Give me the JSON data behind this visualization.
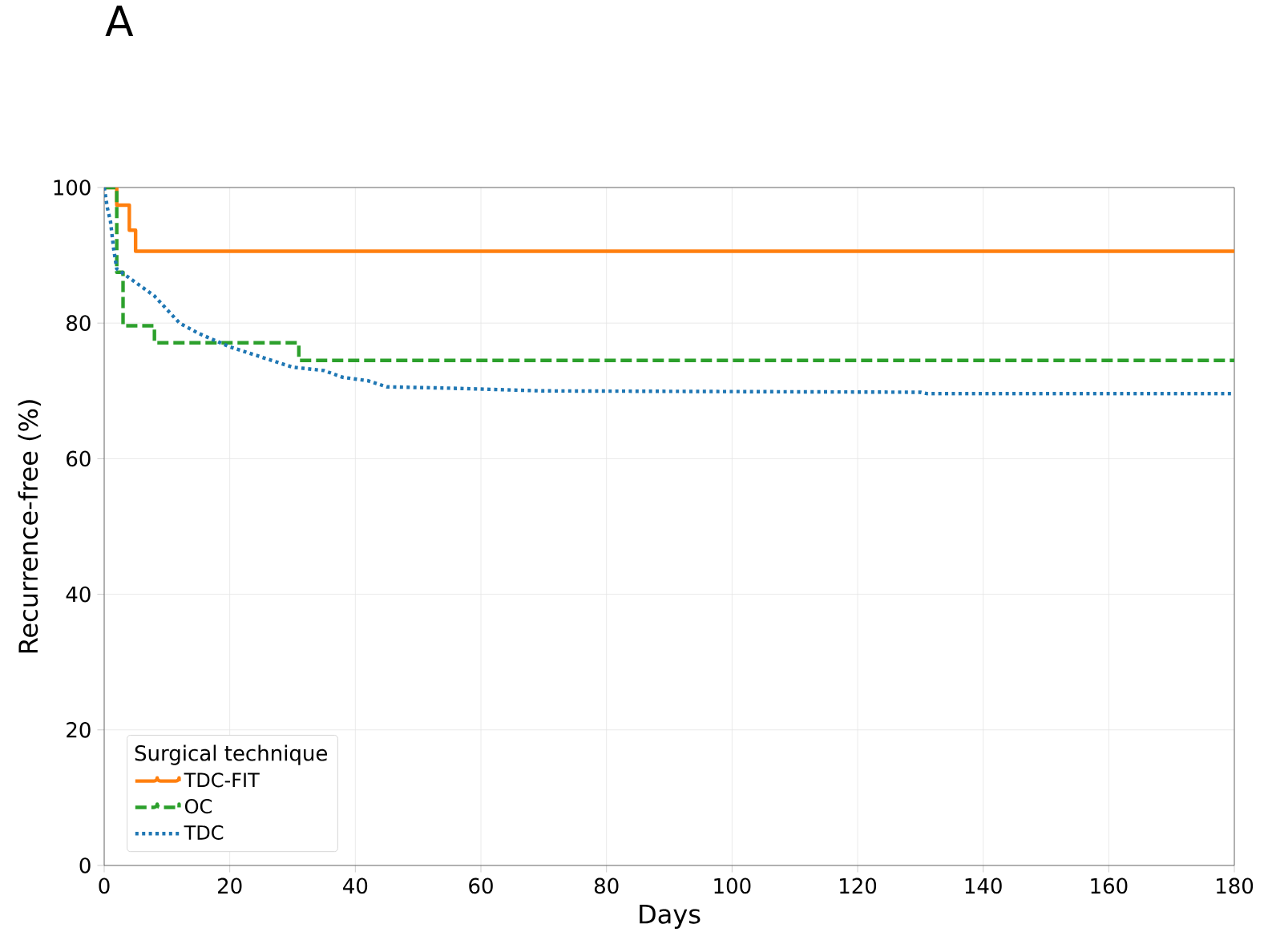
{
  "chart_data": {
    "type": "step",
    "title": "A",
    "xlabel": "Days",
    "ylabel": "Recurrence-free (%)",
    "legend_title": "Surgical technique",
    "xlim": [
      0,
      180
    ],
    "ylim": [
      0,
      100
    ],
    "xticks": [
      0,
      20,
      40,
      60,
      80,
      100,
      120,
      140,
      160,
      180
    ],
    "yticks": [
      0,
      20,
      40,
      60,
      80,
      100
    ],
    "grid": true,
    "legend": "bottom left",
    "series": [
      {
        "name": "TDC-FIT",
        "color": "#ff7f0e",
        "line_style": "solid",
        "x": [
          0,
          2,
          4,
          5,
          180
        ],
        "values": [
          100,
          97.4,
          93.7,
          90.6,
          90.6
        ]
      },
      {
        "name": "OC",
        "color": "#2ca02c",
        "line_style": "dashed",
        "x": [
          0,
          2,
          3,
          8,
          31,
          180
        ],
        "values": [
          100,
          87.5,
          79.6,
          77.1,
          74.5,
          74.5
        ]
      },
      {
        "name": "TDC",
        "color": "#1f77b4",
        "line_style": "dotted",
        "type": "line",
        "x": [
          0,
          0.5,
          1,
          1.5,
          2,
          5,
          8,
          12,
          15,
          20,
          25,
          30,
          35,
          38,
          42,
          45,
          55,
          70,
          100,
          130,
          131,
          180
        ],
        "values": [
          100,
          97,
          95,
          91,
          88,
          86,
          84,
          80,
          78.5,
          76.5,
          75,
          73.5,
          73,
          72,
          71.5,
          70.6,
          70.4,
          70,
          69.9,
          69.8,
          69.6,
          69.6
        ]
      }
    ]
  }
}
